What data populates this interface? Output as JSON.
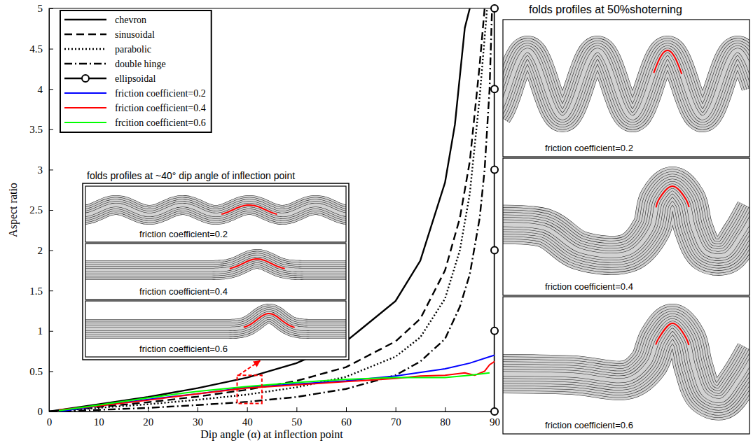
{
  "chart_data": {
    "type": "line",
    "xlabel": "Dip angle (α) at inflection point",
    "ylabel": "Aspect ratio",
    "xlim": [
      0,
      90
    ],
    "ylim": [
      0,
      5
    ],
    "xticks": [
      0,
      10,
      20,
      30,
      40,
      50,
      60,
      70,
      80,
      90
    ],
    "yticks": [
      0,
      0.5,
      1,
      1.5,
      2,
      2.5,
      3,
      3.5,
      4,
      4.5,
      5
    ],
    "legend": "top-left",
    "series": [
      {
        "name": "chevron",
        "color": "#000000",
        "line_style": "solid",
        "x": [
          0,
          10,
          20,
          30,
          40,
          50,
          60,
          70,
          75,
          80,
          82,
          84,
          85
        ],
        "values": [
          0,
          0.09,
          0.18,
          0.29,
          0.42,
          0.6,
          0.87,
          1.37,
          1.87,
          2.84,
          3.56,
          4.76,
          5
        ]
      },
      {
        "name": "sinusoidal",
        "color": "#000000",
        "line_style": "dashed",
        "x": [
          0,
          10,
          20,
          30,
          40,
          50,
          60,
          70,
          75,
          80,
          83,
          85,
          87,
          88
        ],
        "values": [
          0,
          0.055,
          0.115,
          0.185,
          0.27,
          0.38,
          0.55,
          0.87,
          1.15,
          1.75,
          2.4,
          3.1,
          4.3,
          5
        ]
      },
      {
        "name": "parabolic",
        "color": "#000000",
        "line_style": "dotted",
        "x": [
          0,
          10,
          20,
          30,
          40,
          50,
          60,
          70,
          75,
          80,
          83,
          85,
          87,
          88.5
        ],
        "values": [
          0,
          0.045,
          0.09,
          0.145,
          0.21,
          0.3,
          0.43,
          0.68,
          0.92,
          1.4,
          2,
          2.7,
          3.9,
          5
        ]
      },
      {
        "name": "double hinge",
        "color": "#000000",
        "line_style": "dashdot",
        "x": [
          0,
          10,
          20,
          30,
          40,
          50,
          60,
          70,
          75,
          80,
          83,
          85,
          87,
          88,
          89,
          89.5
        ],
        "values": [
          0,
          0.02,
          0.045,
          0.08,
          0.12,
          0.18,
          0.28,
          0.45,
          0.62,
          0.9,
          1.3,
          1.7,
          2.4,
          3,
          4,
          5
        ]
      },
      {
        "name": "ellipsoidal",
        "color": "#000000",
        "line_style": "solid",
        "marker": "circle",
        "x": [
          90,
          90,
          90,
          90,
          90,
          90
        ],
        "values": [
          0,
          1,
          2,
          3,
          4,
          5
        ]
      },
      {
        "name": "friction coefficient=0.2",
        "color": "#0000ff",
        "line_style": "solid",
        "x": [
          2,
          10,
          20,
          30,
          40,
          50,
          60,
          70,
          80,
          85,
          90
        ],
        "values": [
          0,
          0.07,
          0.15,
          0.22,
          0.3,
          0.34,
          0.38,
          0.44,
          0.53,
          0.6,
          0.7
        ]
      },
      {
        "name": "friction coefficient=0.4",
        "color": "#ff0000",
        "line_style": "solid",
        "x": [
          2,
          10,
          20,
          30,
          40,
          50,
          60,
          70,
          75,
          80,
          84,
          86,
          88,
          89,
          90
        ],
        "values": [
          0.02,
          0.07,
          0.14,
          0.22,
          0.29,
          0.33,
          0.37,
          0.41,
          0.44,
          0.45,
          0.48,
          0.45,
          0.5,
          0.58,
          0.62
        ]
      },
      {
        "name": "frcition coefficient=0.6",
        "color": "#00ff00",
        "line_style": "solid",
        "x": [
          2,
          10,
          20,
          30,
          40,
          50,
          60,
          70,
          75,
          80,
          85,
          89
        ],
        "values": [
          0.01,
          0.08,
          0.17,
          0.25,
          0.31,
          0.36,
          0.4,
          0.42,
          0.42,
          0.42,
          0.45,
          0.48
        ]
      }
    ],
    "inset_box": {
      "x": [
        38,
        43
      ],
      "y": [
        0.1,
        0.45
      ]
    },
    "insets": [
      {
        "title": "folds profiles at ~40° dip angle of inflection point",
        "panels": [
          "friction coefficient=0.2",
          "friction coefficient=0.4",
          "friction coefficient=0.6"
        ]
      },
      {
        "title": "folds profiles at 50%shoterning",
        "panels": [
          "friction coefficient=0.2",
          "friction coefficient=0.4",
          "friction coefficient=0.6"
        ]
      }
    ]
  }
}
